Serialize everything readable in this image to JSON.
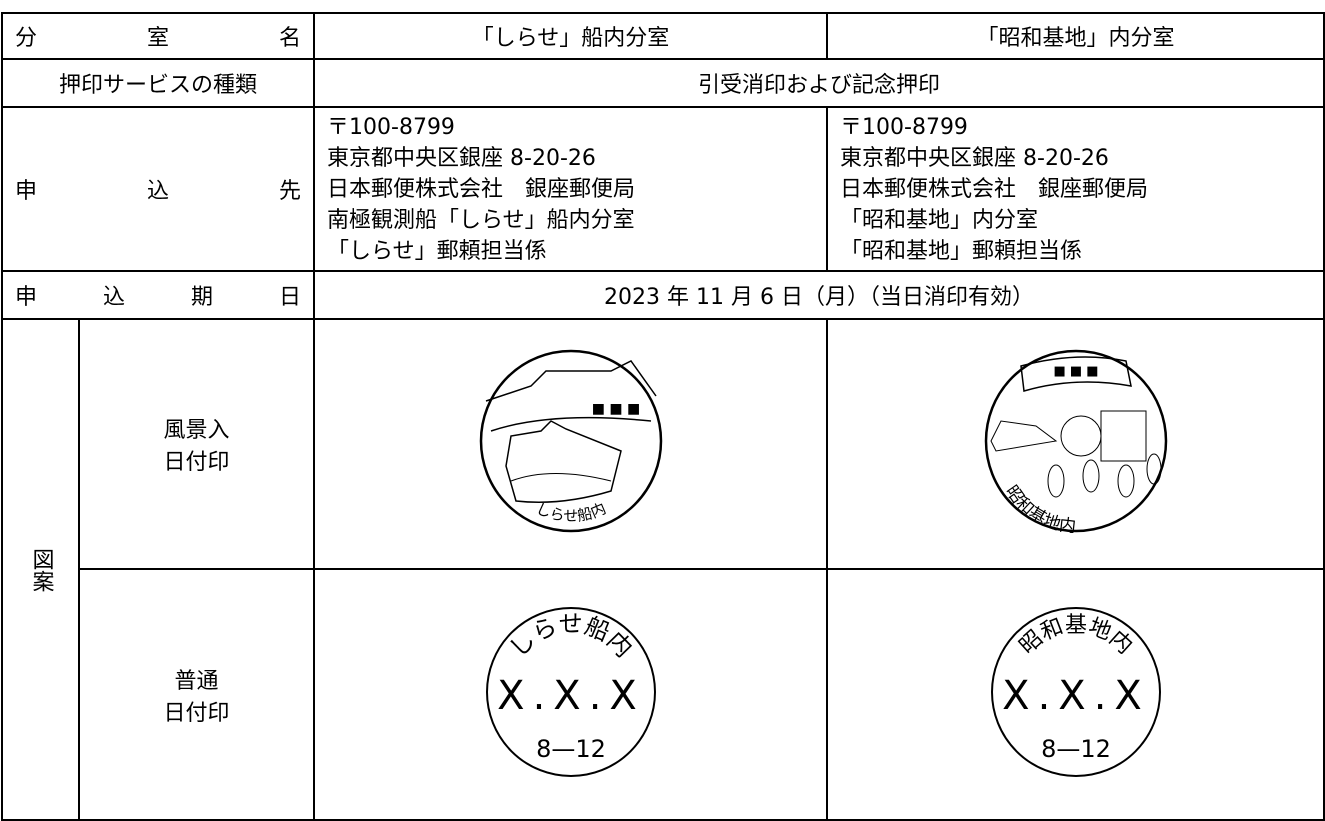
{
  "table": {
    "header": {
      "label": "分室名",
      "col1": "「しらせ」船内分室",
      "col2": "「昭和基地」内分室"
    },
    "service": {
      "label": "押印サービスの種類",
      "value": "引受消印および記念押印"
    },
    "address": {
      "label": "申込先",
      "col1": [
        "〒100-8799",
        "東京都中央区銀座 8-20-26",
        "日本郵便株式会社　銀座郵便局",
        "南極観測船「しらせ」船内分室",
        "「しらせ」郵頼担当係"
      ],
      "col2": [
        "〒100-8799",
        "東京都中央区銀座 8-20-26",
        "日本郵便株式会社　銀座郵便局",
        "「昭和基地」内分室",
        "「昭和基地」郵頼担当係"
      ]
    },
    "deadline": {
      "label": "申込期日",
      "value": "2023 年 11 月 6 日（月）（当日消印有効）"
    },
    "design": {
      "label": "図案",
      "scenic": {
        "label": [
          "風景入",
          "日付印"
        ],
        "col1": {
          "marks": "■ ■ ■",
          "caption": "しらせ船内"
        },
        "col2": {
          "marks": "■ ■ ■",
          "caption": "昭和基地内"
        }
      },
      "ordinary": {
        "label": [
          "普通",
          "日付印"
        ],
        "col1": {
          "top": "しらせ船内",
          "date": "X.X.X",
          "bottom": "8—12"
        },
        "col2": {
          "top": "昭和基地内",
          "date": "X.X.X",
          "bottom": "8—12"
        }
      }
    }
  }
}
